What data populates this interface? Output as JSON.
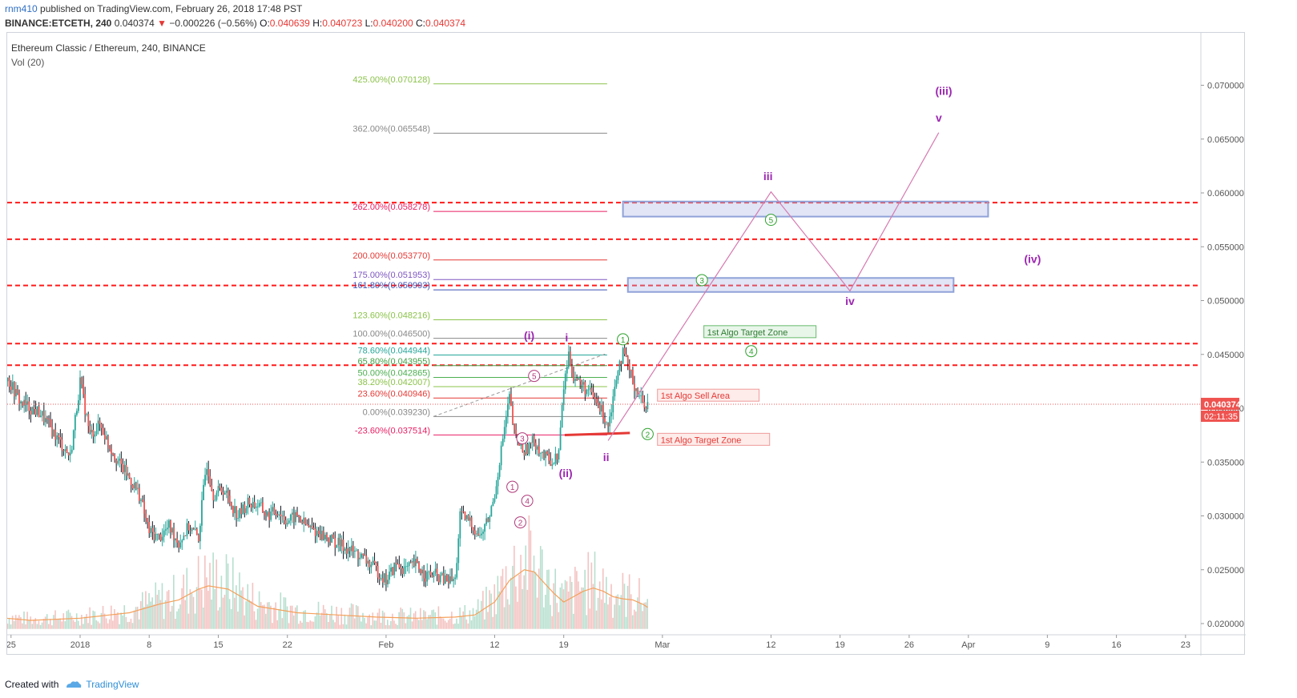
{
  "header": {
    "user": "rnm410",
    "published": " published on TradingView.com, February 26, 2018 17:48 PST",
    "symbol": "BINANCE:ETCETH, 240",
    "last": "0.040374",
    "change": "−0.000226 (−0.56%)",
    "o_label": "O:",
    "o": "0.040639",
    "h_label": "H:",
    "h": "0.040723",
    "l_label": "L:",
    "l": "0.040200",
    "c_label": "C:",
    "c": "0.040374"
  },
  "chart_title": "Ethereum Classic / Ethereum, 240, BINANCE",
  "vol_label": "Vol (20)",
  "footer": {
    "created": "Created with",
    "brand": "TradingView"
  },
  "colors": {
    "up": "#26a69a",
    "down": "#ef5350",
    "candle_dark": "#131722",
    "wave": "#9c27b0",
    "dashed": "#ff1a1a",
    "green": "#2ca02c"
  },
  "chart_data": {
    "type": "candlestick",
    "ylim": [
      0.0192,
      0.0725
    ],
    "y_ticks": [
      "0.020000",
      "0.025000",
      "0.030000",
      "0.035000",
      "0.040000",
      "0.045000",
      "0.050000",
      "0.055000",
      "0.060000",
      "0.065000",
      "0.070000"
    ],
    "x_ticks": [
      {
        "label": "25",
        "d": -7
      },
      {
        "label": "2018",
        "d": 0
      },
      {
        "label": "8",
        "d": 7
      },
      {
        "label": "15",
        "d": 14
      },
      {
        "label": "22",
        "d": 21
      },
      {
        "label": "Feb",
        "d": 31
      },
      {
        "label": "12",
        "d": 42
      },
      {
        "label": "19",
        "d": 49
      },
      {
        "label": "Mar",
        "d": 59
      },
      {
        "label": "12",
        "d": 70
      },
      {
        "label": "19",
        "d": 77
      },
      {
        "label": "26",
        "d": 84
      },
      {
        "label": "Apr",
        "d": 90
      },
      {
        "label": "9",
        "d": 98
      },
      {
        "label": "16",
        "d": 105
      },
      {
        "label": "23",
        "d": 112
      }
    ],
    "price_label": "0.040374",
    "countdown_label": "02:11:35",
    "price_path": [
      [
        -7.5,
        0.043
      ],
      [
        -6,
        0.0405
      ],
      [
        -4,
        0.0395
      ],
      [
        -2,
        0.0368
      ],
      [
        -1,
        0.0355
      ],
      [
        0,
        0.0425
      ],
      [
        1,
        0.0375
      ],
      [
        2,
        0.0385
      ],
      [
        3,
        0.0365
      ],
      [
        4,
        0.0348
      ],
      [
        5,
        0.0335
      ],
      [
        6,
        0.032
      ],
      [
        7,
        0.0285
      ],
      [
        8,
        0.028
      ],
      [
        9,
        0.029
      ],
      [
        10,
        0.0275
      ],
      [
        11,
        0.029
      ],
      [
        12,
        0.028
      ],
      [
        12.8,
        0.035
      ],
      [
        13.5,
        0.032
      ],
      [
        14.5,
        0.0325
      ],
      [
        16,
        0.03
      ],
      [
        17,
        0.0312
      ],
      [
        18,
        0.031
      ],
      [
        19,
        0.03
      ],
      [
        20,
        0.0305
      ],
      [
        21,
        0.0295
      ],
      [
        22,
        0.03
      ],
      [
        23,
        0.029
      ],
      [
        24,
        0.0285
      ],
      [
        25,
        0.028
      ],
      [
        26,
        0.0275
      ],
      [
        27,
        0.027
      ],
      [
        28,
        0.0265
      ],
      [
        29,
        0.0258
      ],
      [
        30,
        0.025
      ],
      [
        31,
        0.024
      ],
      [
        32,
        0.0255
      ],
      [
        33,
        0.025
      ],
      [
        34,
        0.0255
      ],
      [
        35,
        0.0245
      ],
      [
        36,
        0.0245
      ],
      [
        37,
        0.024
      ],
      [
        38,
        0.024
      ],
      [
        38.5,
        0.03
      ],
      [
        39.5,
        0.0295
      ],
      [
        40.5,
        0.028
      ],
      [
        41.5,
        0.03
      ],
      [
        42,
        0.032
      ],
      [
        42.8,
        0.037
      ],
      [
        43.5,
        0.041
      ],
      [
        44,
        0.0375
      ],
      [
        45,
        0.036
      ],
      [
        46,
        0.037
      ],
      [
        47,
        0.0355
      ],
      [
        48,
        0.035
      ],
      [
        48.5,
        0.036
      ],
      [
        49,
        0.042
      ],
      [
        49.5,
        0.045
      ],
      [
        50,
        0.043
      ],
      [
        51,
        0.042
      ],
      [
        52,
        0.041
      ],
      [
        53,
        0.0395
      ],
      [
        53.5,
        0.0385
      ],
      [
        54,
        0.041
      ],
      [
        54.5,
        0.044
      ],
      [
        55,
        0.045
      ],
      [
        55.5,
        0.044
      ],
      [
        56,
        0.0425
      ],
      [
        56.5,
        0.0415
      ],
      [
        57,
        0.0405
      ],
      [
        57.5,
        0.0404
      ]
    ],
    "volume_ma_path": [
      [
        -7.5,
        0.0205
      ],
      [
        -5,
        0.0203
      ],
      [
        0,
        0.0205
      ],
      [
        5,
        0.021
      ],
      [
        8,
        0.0218
      ],
      [
        10,
        0.0222
      ],
      [
        12,
        0.0232
      ],
      [
        13,
        0.0235
      ],
      [
        15,
        0.0232
      ],
      [
        18,
        0.0216
      ],
      [
        22,
        0.021
      ],
      [
        26,
        0.0208
      ],
      [
        30,
        0.0206
      ],
      [
        34,
        0.0205
      ],
      [
        38,
        0.0206
      ],
      [
        40,
        0.0208
      ],
      [
        42,
        0.022
      ],
      [
        43.5,
        0.024
      ],
      [
        45,
        0.025
      ],
      [
        46,
        0.0248
      ],
      [
        47,
        0.0238
      ],
      [
        48,
        0.0228
      ],
      [
        49,
        0.022
      ],
      [
        50,
        0.0225
      ],
      [
        51,
        0.023
      ],
      [
        52,
        0.0233
      ],
      [
        53,
        0.023
      ],
      [
        54,
        0.0225
      ],
      [
        55,
        0.0223
      ],
      [
        56,
        0.0222
      ],
      [
        57,
        0.0218
      ],
      [
        57.5,
        0.0215
      ]
    ],
    "fib_levels": [
      {
        "label": "425.00%(0.070128)",
        "value": 0.070128,
        "color": "#8bc34a"
      },
      {
        "label": "362.00%(0.065548)",
        "value": 0.065548,
        "color": "#888888"
      },
      {
        "label": "262.00%(0.058278)",
        "value": 0.058278,
        "color": "#e91e63"
      },
      {
        "label": "200.00%(0.053770)",
        "value": 0.05377,
        "color": "#e53935"
      },
      {
        "label": "175.00%(0.051953)",
        "value": 0.051953,
        "color": "#7e57c2"
      },
      {
        "label": "161.80%(0.050993)",
        "value": 0.050993,
        "color": "#3f51b5"
      },
      {
        "label": "123.60%(0.048216)",
        "value": 0.048216,
        "color": "#8bc34a"
      },
      {
        "label": "100.00%(0.046500)",
        "value": 0.0465,
        "color": "#888888"
      },
      {
        "label": "78.60%(0.044944)",
        "value": 0.044944,
        "color": "#26a69a"
      },
      {
        "label": "65.80%(0.043955)",
        "value": 0.043955,
        "color": "#43a047"
      },
      {
        "label": "50.00%(0.042865)",
        "value": 0.042865,
        "color": "#4caf50"
      },
      {
        "label": "38.20%(0.042007)",
        "value": 0.042007,
        "color": "#8bc34a"
      },
      {
        "label": "23.60%(0.040946)",
        "value": 0.040946,
        "color": "#e53935"
      },
      {
        "label": "0.00%(0.039230)",
        "value": 0.03923,
        "color": "#888888"
      },
      {
        "label": "-23.60%(0.037514)",
        "value": 0.037514,
        "color": "#e91e63"
      }
    ],
    "dashed_levels": [
      0.0591,
      0.0557,
      0.0514,
      0.046,
      0.044
    ],
    "target_boxes": [
      {
        "from": 55,
        "to": 92,
        "low": 0.0578,
        "high": 0.0592
      },
      {
        "from": 55.5,
        "to": 88.5,
        "low": 0.0508,
        "high": 0.0521
      }
    ],
    "projection_path": [
      [
        53.5,
        0.037
      ],
      [
        70,
        0.0601
      ],
      [
        78,
        0.0509
      ],
      [
        87,
        0.0656
      ]
    ],
    "wave_labels": [
      {
        "text": "(iii)",
        "d": 87.5,
        "v": 0.0691,
        "color": "#9c27b0",
        "bold": true
      },
      {
        "text": "v",
        "d": 87,
        "v": 0.0666,
        "color": "#9c27b0",
        "bold": true
      },
      {
        "text": "iii",
        "d": 69.7,
        "v": 0.0612,
        "color": "#9c27b0",
        "bold": true
      },
      {
        "text": "(iv)",
        "d": 96.5,
        "v": 0.0535,
        "color": "#9c27b0",
        "bold": true
      },
      {
        "text": "iv",
        "d": 78,
        "v": 0.0496,
        "color": "#9c27b0",
        "bold": true
      },
      {
        "text": "(i)",
        "d": 45.5,
        "v": 0.0464,
        "color": "#9c27b0",
        "bold": true
      },
      {
        "text": "i",
        "d": 49.3,
        "v": 0.0462,
        "color": "#9c27b0",
        "bold": true
      },
      {
        "text": "ii",
        "d": 53.3,
        "v": 0.0351,
        "color": "#9c27b0",
        "bold": true
      },
      {
        "text": "(ii)",
        "d": 49.2,
        "v": 0.0336,
        "color": "#9c27b0",
        "bold": true
      }
    ],
    "circle_labels": [
      {
        "text": "5",
        "d": 70,
        "v": 0.0575,
        "color": "#2ca02c"
      },
      {
        "text": "3",
        "d": 63,
        "v": 0.0519,
        "color": "#2ca02c"
      },
      {
        "text": "4",
        "d": 68,
        "v": 0.0453,
        "color": "#2ca02c"
      },
      {
        "text": "1",
        "d": 55,
        "v": 0.0464,
        "color": "#2ca02c"
      },
      {
        "text": "2",
        "d": 57.5,
        "v": 0.0376,
        "color": "#2ca02c"
      },
      {
        "text": "5",
        "d": 46,
        "v": 0.043,
        "color": "#b03a7a"
      },
      {
        "text": "3",
        "d": 44.8,
        "v": 0.0372,
        "color": "#b03a7a"
      },
      {
        "text": "1",
        "d": 43.8,
        "v": 0.0327,
        "color": "#b03a7a"
      },
      {
        "text": "4",
        "d": 45.3,
        "v": 0.0314,
        "color": "#b03a7a"
      },
      {
        "text": "2",
        "d": 44.6,
        "v": 0.0294,
        "color": "#b03a7a"
      }
    ],
    "text_boxes": [
      {
        "text": "1st Algo Target Zone",
        "d": 63.2,
        "v": 0.047,
        "color": "#2e7d32",
        "bg": "#e8f5e9",
        "border": "#66bb6a"
      },
      {
        "text": "1st Algo Sell Area",
        "d": 58.5,
        "v": 0.0411,
        "color": "#e53935",
        "bg": "#fdecea",
        "border": "#ef9a9a"
      },
      {
        "text": "1st Algo Target Zone",
        "d": 58.5,
        "v": 0.037,
        "color": "#e53935",
        "bg": "#fdecea",
        "border": "#ef9a9a"
      }
    ]
  }
}
